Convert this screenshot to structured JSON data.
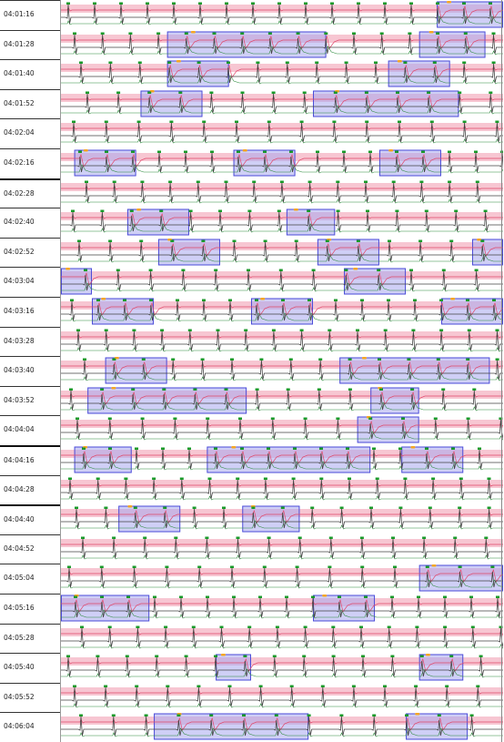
{
  "view": {
    "colors": {
      "band_fill": "#f7c6d2",
      "ecg_line": "#444444",
      "red_trace": "#e0486a",
      "green_trace": "#2e8b3e",
      "episode_fill": "#a7a7ee",
      "episode_border": "#4a4ad8",
      "beat_marker": "#1a9a2a",
      "event_marker": "#f5a623"
    }
  },
  "strips": [
    {
      "time": "04:01:16",
      "episodes": [
        [
          0.85,
          1.0
        ]
      ]
    },
    {
      "time": "04:01:28",
      "episodes": [
        [
          0.24,
          0.6
        ],
        [
          0.81,
          0.96
        ]
      ]
    },
    {
      "time": "04:01:40",
      "episodes": [
        [
          0.24,
          0.38
        ],
        [
          0.74,
          0.88
        ]
      ]
    },
    {
      "time": "04:01:52",
      "episodes": [
        [
          0.18,
          0.32
        ],
        [
          0.57,
          0.9
        ]
      ]
    },
    {
      "time": "04:02:04",
      "episodes": []
    },
    {
      "time": "04:02:16",
      "episodes": [
        [
          0.03,
          0.17
        ],
        [
          0.39,
          0.53
        ],
        [
          0.72,
          0.86
        ]
      ]
    },
    {
      "time": "04:02:28",
      "episodes": [],
      "thick": true
    },
    {
      "time": "04:02:40",
      "episodes": [
        [
          0.15,
          0.29
        ],
        [
          0.51,
          0.62
        ]
      ]
    },
    {
      "time": "04:02:52",
      "episodes": [
        [
          0.22,
          0.36
        ],
        [
          0.58,
          0.72
        ],
        [
          0.93,
          1.0
        ]
      ]
    },
    {
      "time": "04:03:04",
      "episodes": [
        [
          0.0,
          0.07
        ],
        [
          0.64,
          0.78
        ]
      ]
    },
    {
      "time": "04:03:16",
      "episodes": [
        [
          0.07,
          0.21
        ],
        [
          0.43,
          0.57
        ],
        [
          0.86,
          1.0
        ]
      ]
    },
    {
      "time": "04:03:28",
      "episodes": []
    },
    {
      "time": "04:03:40",
      "episodes": [
        [
          0.1,
          0.24
        ],
        [
          0.63,
          0.97
        ]
      ]
    },
    {
      "time": "04:03:52",
      "episodes": [
        [
          0.06,
          0.42
        ],
        [
          0.7,
          0.81
        ]
      ]
    },
    {
      "time": "04:04:04",
      "episodes": [
        [
          0.67,
          0.81
        ]
      ]
    },
    {
      "time": "04:04:16",
      "episodes": [
        [
          0.03,
          0.16
        ],
        [
          0.33,
          0.7
        ],
        [
          0.77,
          0.91
        ]
      ],
      "thick": true
    },
    {
      "time": "04:04:28",
      "episodes": []
    },
    {
      "time": "04:04:40",
      "episodes": [
        [
          0.13,
          0.27
        ],
        [
          0.41,
          0.54
        ]
      ],
      "thick": true
    },
    {
      "time": "04:04:52",
      "episodes": []
    },
    {
      "time": "04:05:04",
      "episodes": [
        [
          0.81,
          1.0
        ]
      ]
    },
    {
      "time": "04:05:16",
      "episodes": [
        [
          0.0,
          0.2
        ],
        [
          0.57,
          0.71
        ]
      ]
    },
    {
      "time": "04:05:28",
      "episodes": []
    },
    {
      "time": "04:05:40",
      "episodes": [
        [
          0.35,
          0.43
        ],
        [
          0.81,
          0.91
        ]
      ]
    },
    {
      "time": "04:05:52",
      "episodes": []
    },
    {
      "time": "04:06:04",
      "episodes": [
        [
          0.21,
          0.56
        ],
        [
          0.78,
          0.92
        ]
      ]
    }
  ]
}
